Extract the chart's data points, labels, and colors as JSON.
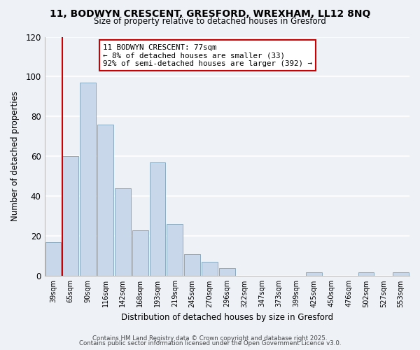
{
  "title": "11, BODWYN CRESCENT, GRESFORD, WREXHAM, LL12 8NQ",
  "subtitle": "Size of property relative to detached houses in Gresford",
  "xlabel": "Distribution of detached houses by size in Gresford",
  "ylabel": "Number of detached properties",
  "bar_color": "#c8d8ea",
  "bar_edge_color": "#8aaac0",
  "bins": [
    "39sqm",
    "65sqm",
    "90sqm",
    "116sqm",
    "142sqm",
    "168sqm",
    "193sqm",
    "219sqm",
    "245sqm",
    "270sqm",
    "296sqm",
    "322sqm",
    "347sqm",
    "373sqm",
    "399sqm",
    "425sqm",
    "450sqm",
    "476sqm",
    "502sqm",
    "527sqm",
    "553sqm"
  ],
  "values": [
    17,
    60,
    97,
    76,
    44,
    23,
    57,
    26,
    11,
    7,
    4,
    0,
    0,
    0,
    0,
    2,
    0,
    0,
    2,
    0,
    2
  ],
  "vline_color": "#cc0000",
  "ylim": [
    0,
    120
  ],
  "yticks": [
    0,
    20,
    40,
    60,
    80,
    100,
    120
  ],
  "annotation_title": "11 BODWYN CRESCENT: 77sqm",
  "annotation_line1": "← 8% of detached houses are smaller (33)",
  "annotation_line2": "92% of semi-detached houses are larger (392) →",
  "annotation_box_color": "#ffffff",
  "annotation_box_edge": "#cc0000",
  "footer1": "Contains HM Land Registry data © Crown copyright and database right 2025.",
  "footer2": "Contains public sector information licensed under the Open Government Licence v3.0.",
  "background_color": "#eef2f7",
  "grid_color": "#ffffff"
}
